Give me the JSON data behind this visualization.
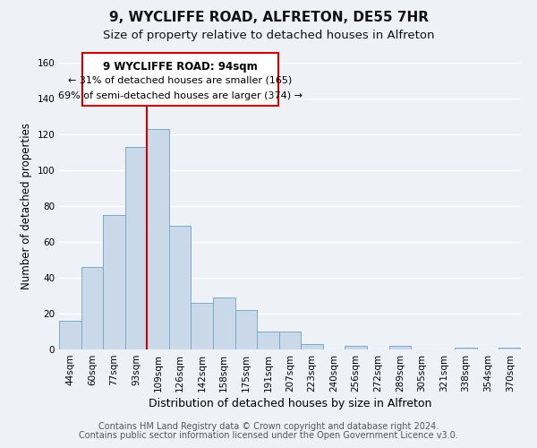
{
  "title": "9, WYCLIFFE ROAD, ALFRETON, DE55 7HR",
  "subtitle": "Size of property relative to detached houses in Alfreton",
  "xlabel": "Distribution of detached houses by size in Alfreton",
  "ylabel": "Number of detached properties",
  "categories": [
    "44sqm",
    "60sqm",
    "77sqm",
    "93sqm",
    "109sqm",
    "126sqm",
    "142sqm",
    "158sqm",
    "175sqm",
    "191sqm",
    "207sqm",
    "223sqm",
    "240sqm",
    "256sqm",
    "272sqm",
    "289sqm",
    "305sqm",
    "321sqm",
    "338sqm",
    "354sqm",
    "370sqm"
  ],
  "values": [
    16,
    46,
    75,
    113,
    123,
    69,
    26,
    29,
    22,
    10,
    10,
    3,
    0,
    2,
    0,
    2,
    0,
    0,
    1,
    0,
    1
  ],
  "bar_color": "#c9d9ea",
  "bar_edge_color": "#7aaac8",
  "vline_x": 3.5,
  "vline_color": "#cc0000",
  "annotation_title": "9 WYCLIFFE ROAD: 94sqm",
  "annotation_line1": "← 31% of detached houses are smaller (165)",
  "annotation_line2": "69% of semi-detached houses are larger (374) →",
  "annotation_box_facecolor": "#ffffff",
  "annotation_box_edgecolor": "#cc0000",
  "ylim": [
    0,
    160
  ],
  "yticks": [
    0,
    20,
    40,
    60,
    80,
    100,
    120,
    140,
    160
  ],
  "footer_line1": "Contains HM Land Registry data © Crown copyright and database right 2024.",
  "footer_line2": "Contains public sector information licensed under the Open Government Licence v3.0.",
  "background_color": "#eef2f7",
  "grid_color": "#ffffff",
  "title_fontsize": 11,
  "subtitle_fontsize": 9.5,
  "xlabel_fontsize": 9,
  "ylabel_fontsize": 8.5,
  "tick_fontsize": 7.5,
  "footer_fontsize": 7
}
